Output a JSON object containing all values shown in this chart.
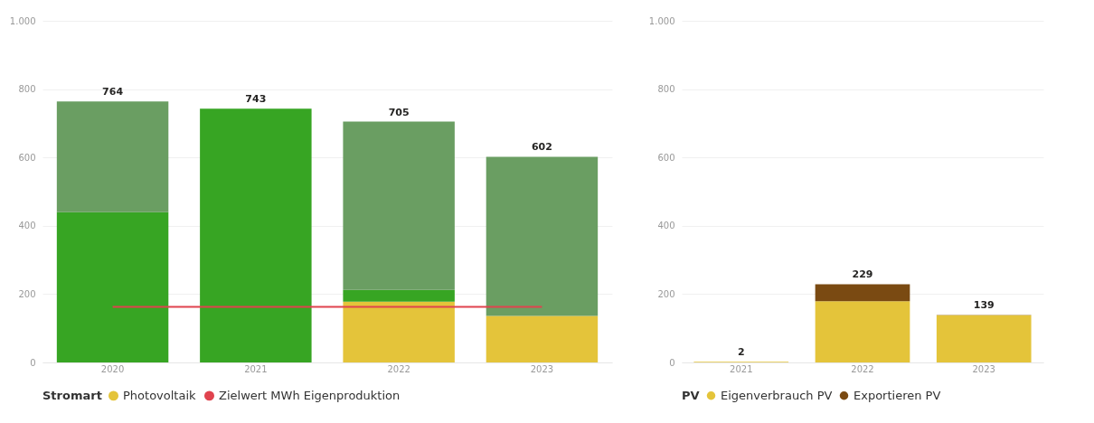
{
  "chart_data": [
    {
      "type": "bar",
      "stacked": true,
      "categories": [
        "2020",
        "2021",
        "2022",
        "2023"
      ],
      "legend_title": "Stromart",
      "legend": "bottom",
      "grid": "y",
      "ylim": [
        0,
        1000
      ],
      "yticks": [
        0,
        200,
        400,
        600,
        800,
        {
          "value": 1000,
          "label": "1.000"
        }
      ],
      "series": [
        {
          "name": "Photovoltaik",
          "color": "#e4c43a",
          "values": [
            0,
            0,
            178,
            136
          ]
        },
        {
          "name": null,
          "color": "#37a523",
          "values": [
            440,
            743,
            34,
            0
          ]
        },
        {
          "name": null,
          "color": "#6a9e62",
          "values": [
            324,
            0,
            493,
            466
          ]
        },
        {
          "name": "Zielwert MWh Eigenproduktion",
          "type": "line",
          "color": "#e0434e",
          "values": [
            163,
            163,
            163,
            163
          ]
        }
      ],
      "totals": [
        "764",
        "743",
        "705",
        "602"
      ]
    },
    {
      "type": "bar",
      "stacked": true,
      "categories": [
        "2021",
        "2022",
        "2023"
      ],
      "legend_title": "PV",
      "legend": "bottom",
      "grid": "y",
      "ylim": [
        0,
        1000
      ],
      "yticks": [
        0,
        200,
        400,
        600,
        800,
        {
          "value": 1000,
          "label": "1.000"
        }
      ],
      "series": [
        {
          "name": "Eigenverbrauch PV",
          "color": "#e4c43a",
          "values": [
            2,
            179,
            138
          ]
        },
        {
          "name": "Exportieren PV",
          "color": "#7a4a12",
          "values": [
            0,
            50,
            1
          ]
        }
      ],
      "totals": [
        "2",
        "229",
        "139"
      ]
    }
  ]
}
